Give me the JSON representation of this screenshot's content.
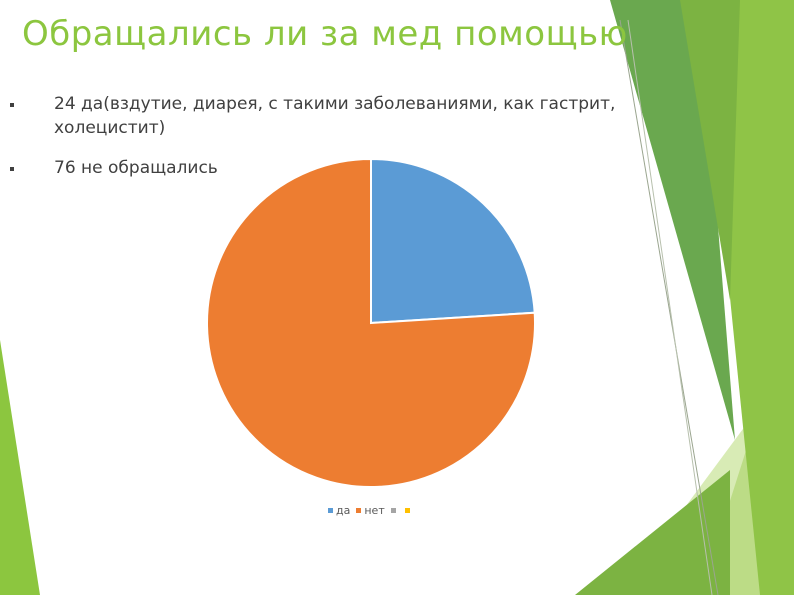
{
  "slide": {
    "title": "Обращались ли за мед помощью",
    "bullets": [
      "24 да(вздутие, диарея, с такими заболеваниями, как гастрит, холецистит)",
      "76 не обращались"
    ]
  },
  "colors": {
    "title": "#8cc63f",
    "deco_dark": "#6aa84f",
    "deco_light": "#a4cf5a",
    "deco_pale": "#d8ebb5"
  },
  "chart_data": {
    "type": "pie",
    "categories": [
      "да",
      "нет",
      "",
      ""
    ],
    "values": [
      24,
      76,
      0,
      0
    ],
    "colors": [
      "#5b9bd5",
      "#ed7d31",
      "#a5a5a5",
      "#ffc000"
    ],
    "start_angle_deg": 0,
    "direction": "clockwise",
    "title": "",
    "legend_position": "bottom"
  }
}
